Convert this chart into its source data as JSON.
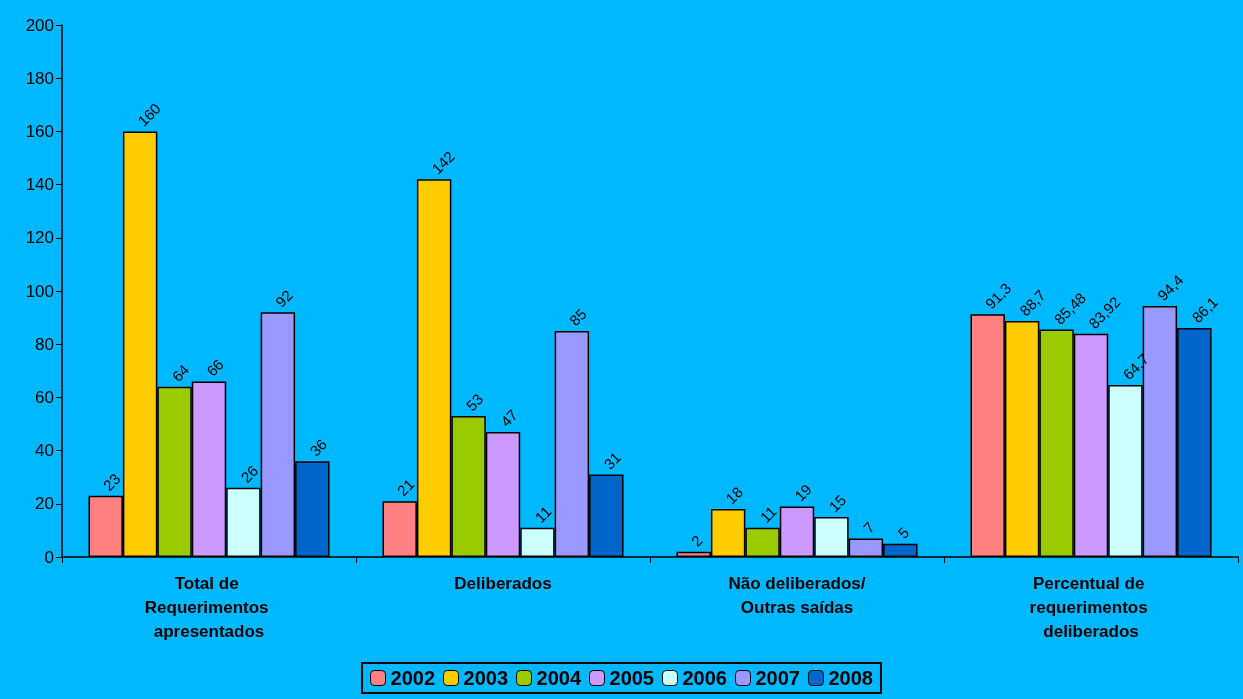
{
  "chart_data": {
    "type": "bar",
    "categories": [
      "Total de Requerimentos apresentados",
      "Deliberados",
      "Não deliberados/Outras saídas",
      "Percentual de requerimentos deliberados"
    ],
    "series": [
      {
        "name": "2002",
        "color": "#ff8080",
        "values": [
          23,
          21,
          2,
          91.3
        ],
        "value_labels": [
          "23",
          "21",
          "2",
          "91,3"
        ]
      },
      {
        "name": "2003",
        "color": "#ffcc00",
        "values": [
          160,
          142,
          18,
          88.7
        ],
        "value_labels": [
          "160",
          "142",
          "18",
          "88,7"
        ]
      },
      {
        "name": "2004",
        "color": "#99cc00",
        "values": [
          64,
          53,
          11,
          85.48
        ],
        "value_labels": [
          "64",
          "53",
          "11",
          "85,48"
        ]
      },
      {
        "name": "2005",
        "color": "#cc99ff",
        "values": [
          66,
          47,
          19,
          83.92
        ],
        "value_labels": [
          "66",
          "47",
          "19",
          "83,92"
        ]
      },
      {
        "name": "2006",
        "color": "#ccffff",
        "values": [
          26,
          11,
          15,
          64.7
        ],
        "value_labels": [
          "26",
          "11",
          "15",
          "64,7"
        ]
      },
      {
        "name": "2007",
        "color": "#9999ff",
        "values": [
          92,
          85,
          7,
          94.4
        ],
        "value_labels": [
          "92",
          "85",
          "7",
          "94,4"
        ]
      },
      {
        "name": "2008",
        "color": "#0066cc",
        "values": [
          36,
          31,
          5,
          86.1
        ],
        "value_labels": [
          "36",
          "31",
          "5",
          "86,1"
        ]
      }
    ],
    "ylim": [
      0,
      200
    ],
    "yticks": [
      0,
      20,
      40,
      60,
      80,
      100,
      120,
      140,
      160,
      180,
      200
    ],
    "grid": false,
    "legend": "bottom"
  }
}
